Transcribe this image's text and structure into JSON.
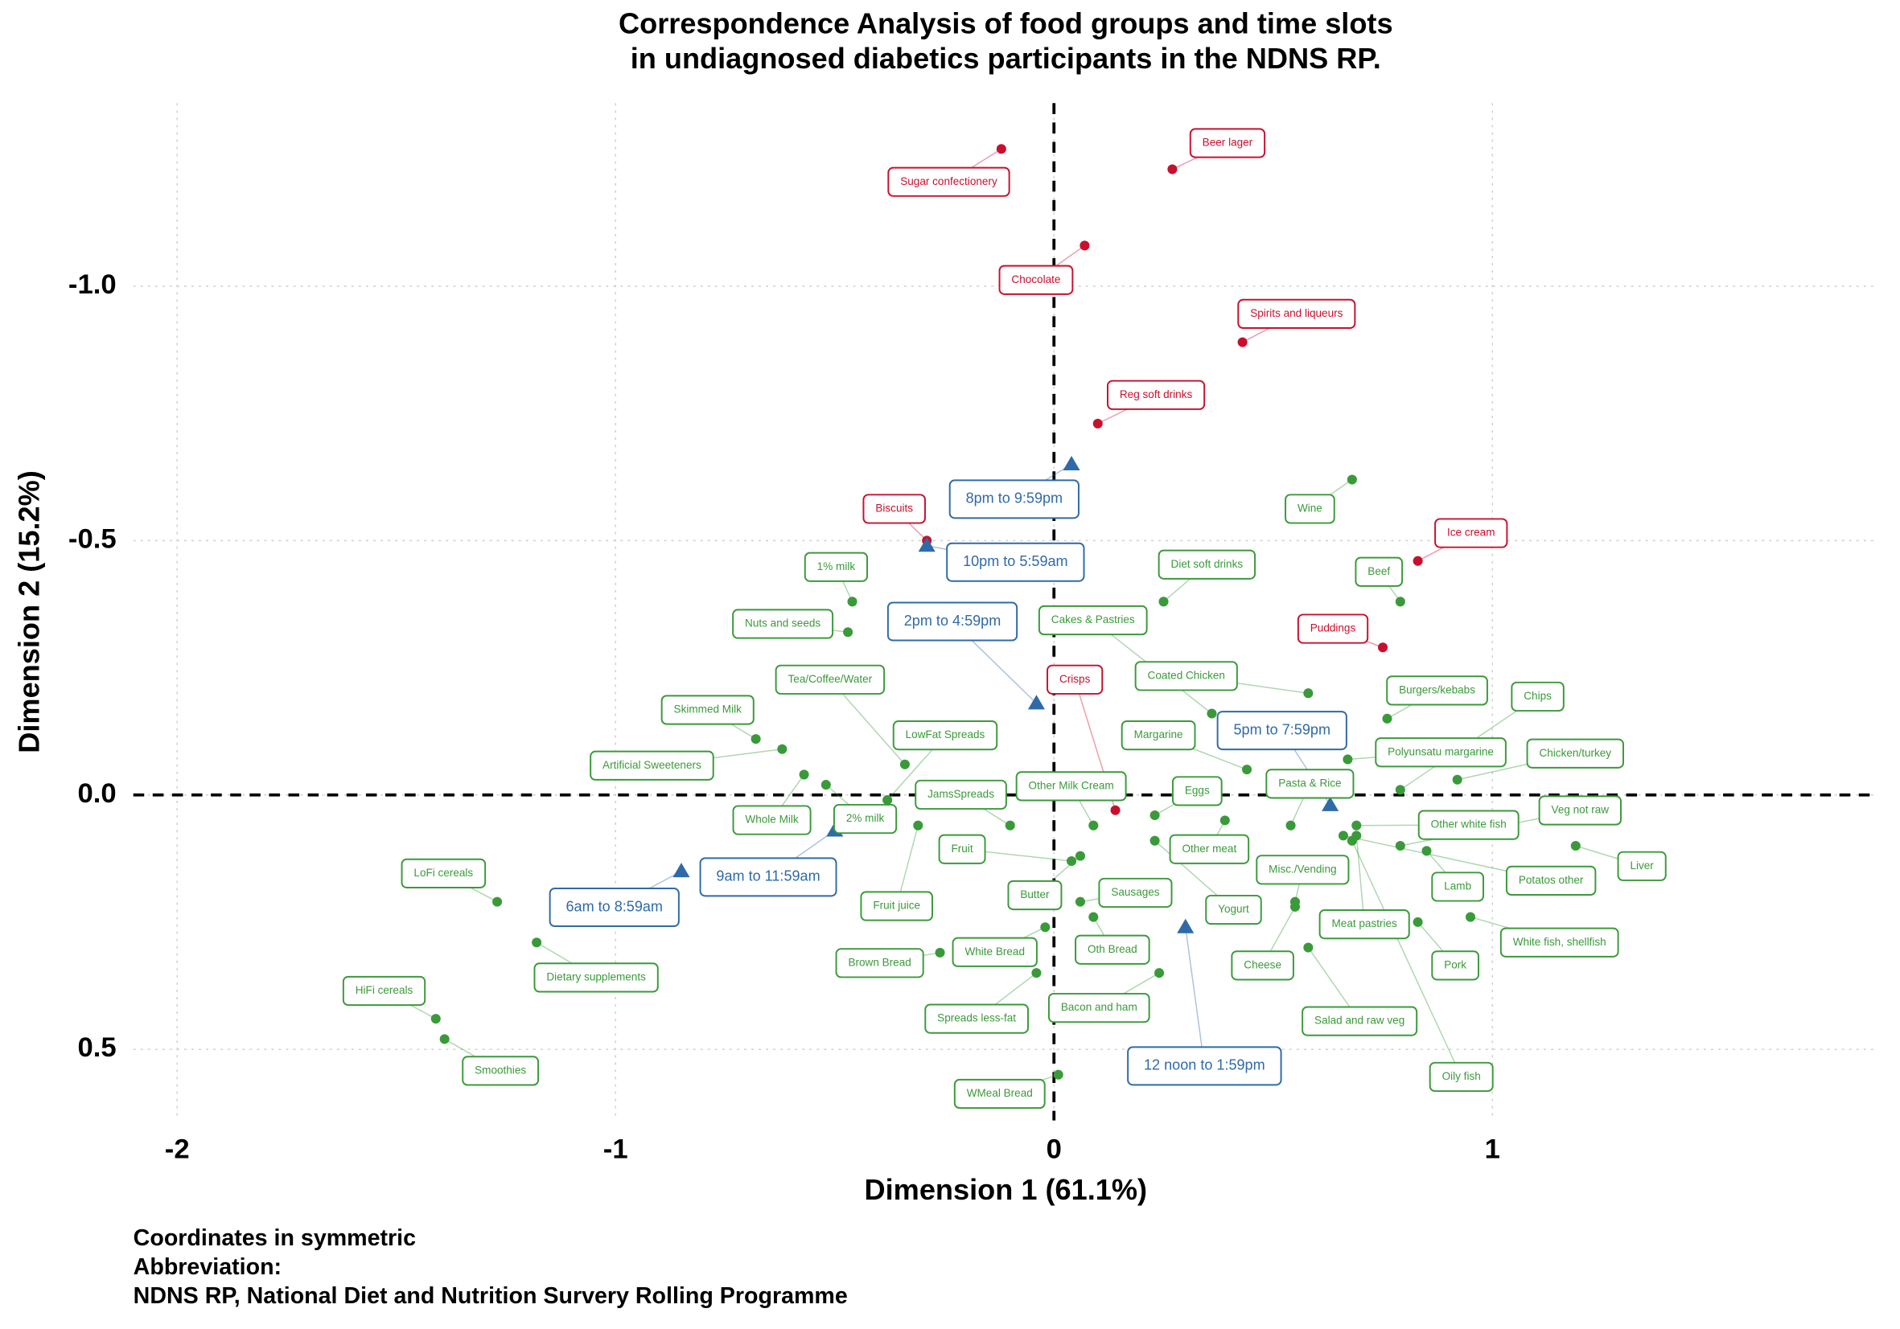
{
  "chart_data": {
    "type": "scatter",
    "title": [
      "Correspondence Analysis of food groups and time slots",
      "in undiagnosed diabetics participants in the NDNS RP."
    ],
    "x_label": "Dimension 1 (61.1%)",
    "y_label": "Dimension 2 (15.2%)",
    "notes": [
      "Coordinates in symmetric",
      "Abbreviation:",
      "NDNS RP, National Diet and Nutrition Survery Rolling Programme"
    ],
    "xlim": [
      -2.1,
      1.88
    ],
    "ylim": [
      -1.36,
      0.64
    ],
    "y_reversed": true,
    "xticks": [
      -2,
      -1,
      0,
      1
    ],
    "yticks": [
      {
        "value": -1,
        "label": "-1.0"
      },
      {
        "value": -0.5,
        "label": "-0.5"
      },
      {
        "value": 0,
        "label": "0.0"
      },
      0.5
    ],
    "grid": true,
    "ref_lines": {
      "x": 0,
      "y": 0
    },
    "series": [
      {
        "color": "#c8102e",
        "marker": "circle",
        "label_size": 9,
        "labels": [
          "Sugar confectionery",
          "Beer lager",
          "Chocolate",
          "Spirits and liqueurs",
          "Reg soft drinks",
          "Biscuits",
          "Ice cream",
          "Puddings",
          "Crisps"
        ],
        "x": [
          -0.12,
          0.27,
          0.07,
          0.43,
          0.1,
          -0.29,
          0.83,
          0.75,
          0.14
        ],
        "y": [
          -1.27,
          -1.23,
          -1.08,
          -0.89,
          -0.73,
          -0.5,
          -0.46,
          -0.29,
          0.03
        ]
      },
      {
        "color": "#3a9a3a",
        "marker": "circle",
        "label_size": 9,
        "labels": [
          "Wine",
          "Diet soft drinks",
          "Beef",
          "1% milk",
          "Nuts and seeds",
          "Cakes & Pastries",
          "Coated Chicken",
          "Tea/Coffee/Water",
          "Skimmed Milk",
          "Artificial Sweeteners",
          "Whole Milk",
          "2% milk",
          "LowFat Spreads",
          "JamsSpreads",
          "Fruit juice",
          "Fruit",
          "Butter",
          "Other Milk Cream",
          "Eggs",
          "Other meat",
          "Yogurt",
          "Sausages",
          "Oth Bread",
          "Margarine",
          "Pasta & Rice",
          "Misc./Vending",
          "Cheese",
          "Salad and raw veg",
          "Oily fish",
          "Meat pastries",
          "Burgers/kebabs",
          "Polyunsatu margarine",
          "Chips",
          "Chicken/turkey",
          "Other white fish",
          "Veg not raw",
          "Lamb",
          "Potatos other",
          "Liver",
          "White fish, shellfish",
          "Pork",
          "LoFi cereals",
          "Dietary supplements",
          "HiFi cereals",
          "Smoothies",
          "Brown Bread",
          "White Bread",
          "Spreads less-fat",
          "Bacon and ham",
          "WMeal Bread"
        ],
        "x": [
          0.68,
          0.25,
          0.79,
          -0.46,
          -0.47,
          0.36,
          0.58,
          -0.34,
          -0.68,
          -0.62,
          -0.57,
          -0.52,
          -0.38,
          -0.1,
          -0.31,
          0.04,
          0.06,
          0.09,
          0.23,
          0.39,
          0.23,
          0.06,
          0.09,
          0.44,
          0.54,
          0.55,
          0.55,
          0.58,
          0.68,
          0.69,
          0.76,
          0.67,
          0.79,
          0.92,
          0.69,
          0.79,
          0.85,
          0.66,
          1.19,
          0.95,
          0.83,
          -1.27,
          -1.18,
          -1.41,
          -1.39,
          -0.26,
          -0.02,
          -0.04,
          0.24,
          0.01
        ],
        "y": [
          -0.62,
          -0.38,
          -0.38,
          -0.38,
          -0.32,
          -0.16,
          -0.2,
          -0.06,
          -0.11,
          -0.09,
          -0.04,
          -0.02,
          0.01,
          0.06,
          0.06,
          0.13,
          0.12,
          0.06,
          0.04,
          0.05,
          0.09,
          0.21,
          0.24,
          -0.05,
          0.06,
          0.21,
          0.22,
          0.3,
          0.09,
          0.08,
          -0.15,
          -0.07,
          -0.01,
          -0.03,
          0.06,
          0.1,
          0.11,
          0.08,
          0.1,
          0.24,
          0.25,
          0.21,
          0.29,
          0.44,
          0.48,
          0.31,
          0.26,
          0.35,
          0.35,
          0.55
        ]
      },
      {
        "color": "#2f6aa8",
        "marker": "triangle",
        "label_size": 12,
        "labels": [
          "8pm to 9:59pm",
          "10pm to 5:59am",
          "2pm to 4:59pm",
          "5pm to 7:59pm",
          "9am to 11:59am",
          "6am to 8:59am",
          "12 noon to 1:59pm"
        ],
        "x": [
          0.04,
          -0.29,
          -0.04,
          0.63,
          -0.5,
          -0.85,
          0.3
        ],
        "y": [
          -0.65,
          -0.49,
          -0.18,
          0.02,
          0.07,
          0.15,
          0.26
        ]
      }
    ]
  }
}
